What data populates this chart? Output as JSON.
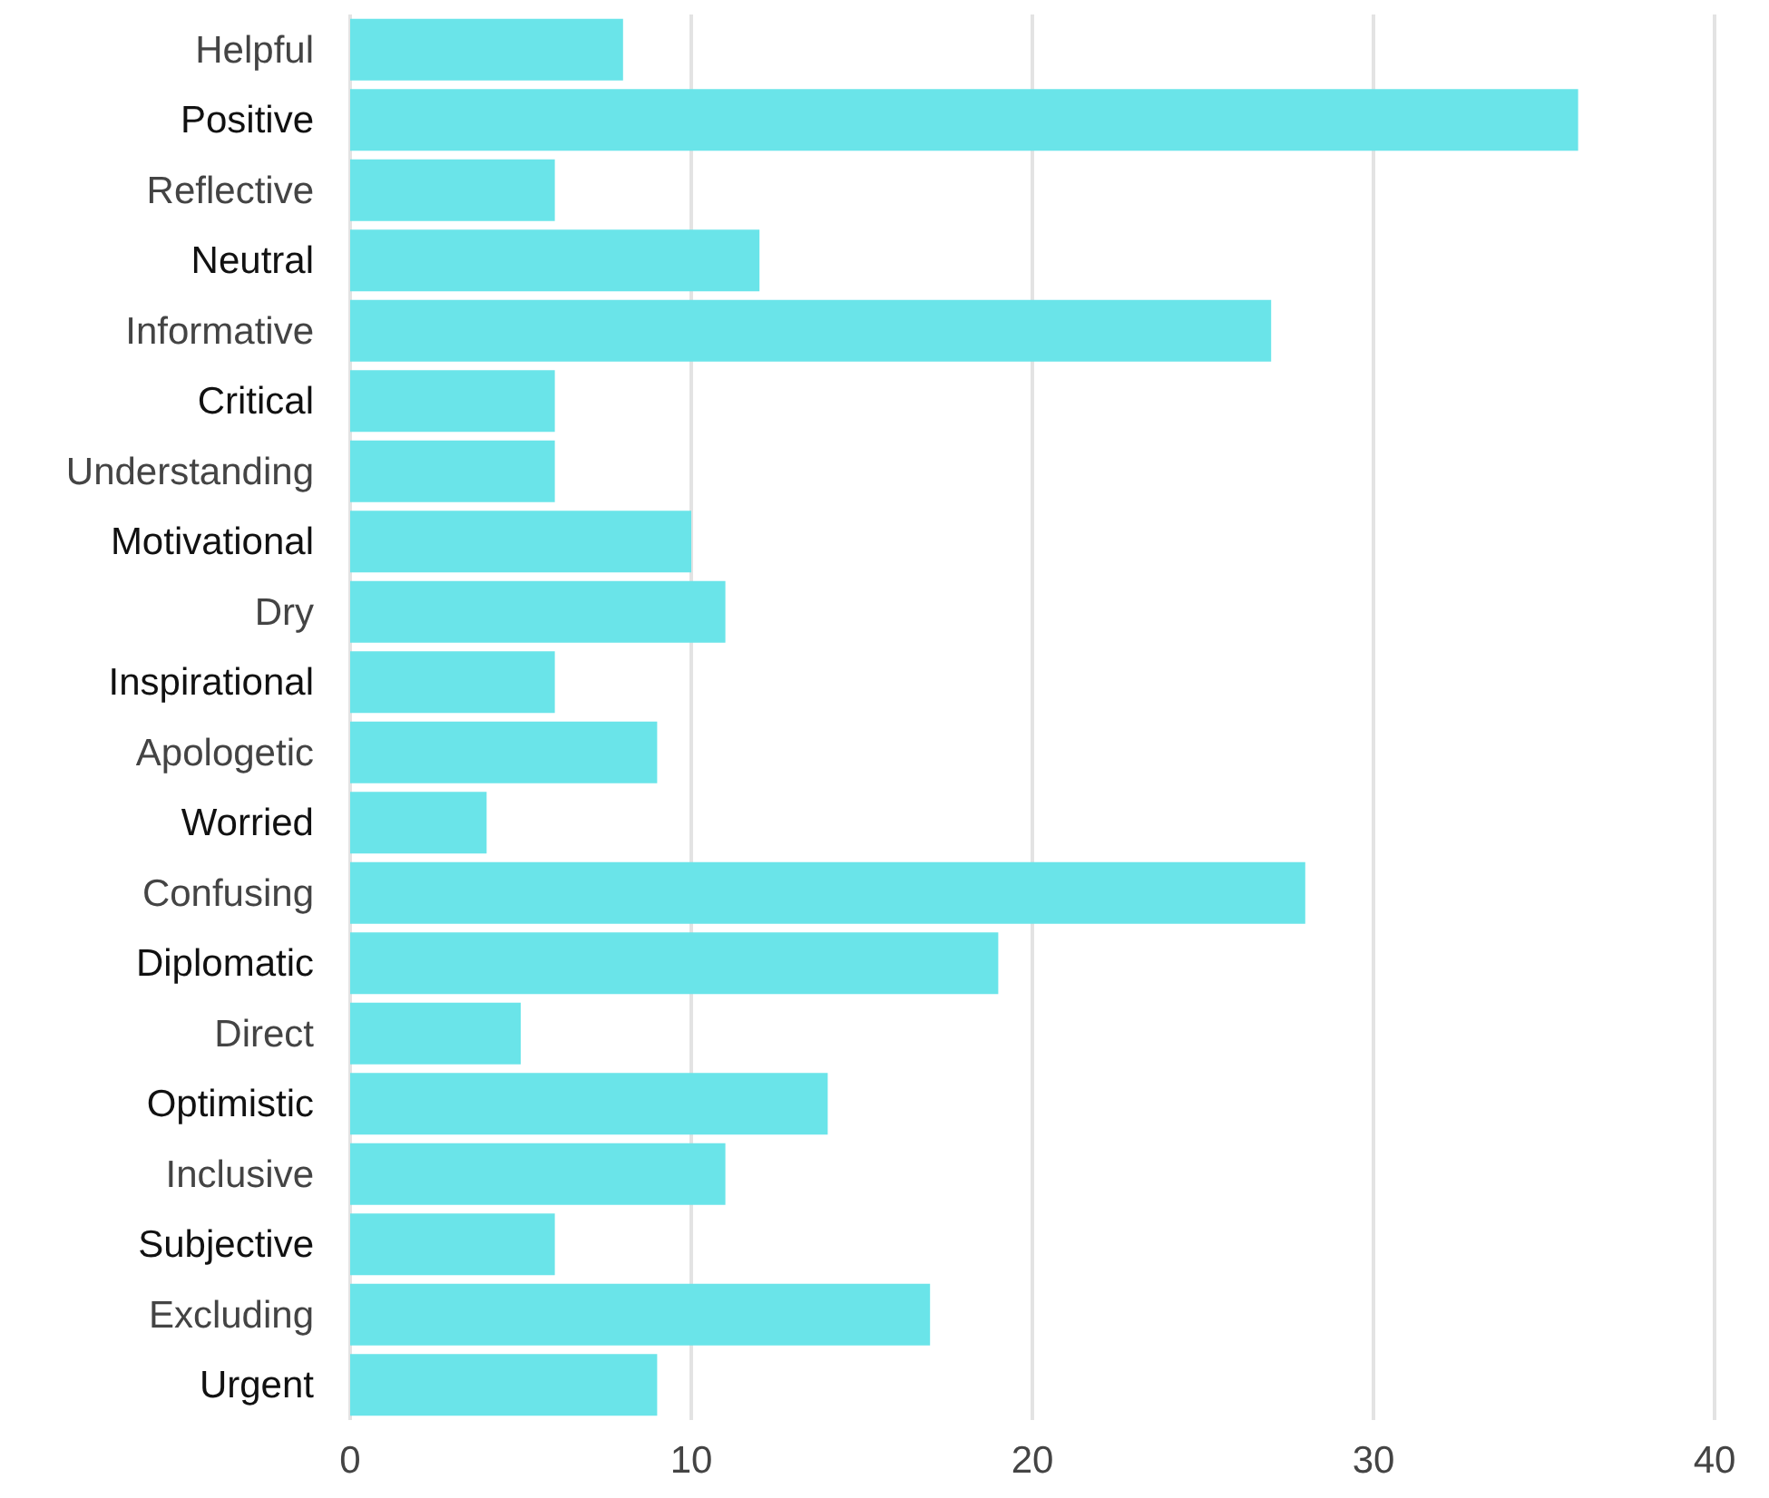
{
  "chart_data": {
    "type": "bar",
    "orientation": "horizontal",
    "categories": [
      "Helpful",
      "Positive",
      "Reflective",
      "Neutral",
      "Informative",
      "Critical",
      "Understanding",
      "Motivational",
      "Dry",
      "Inspirational",
      "Apologetic",
      "Worried",
      "Confusing",
      "Diplomatic",
      "Direct",
      "Optimistic",
      "Inclusive",
      "Subjective",
      "Excluding",
      "Urgent"
    ],
    "values": [
      8,
      36,
      6,
      12,
      27,
      6,
      6,
      10,
      11,
      6,
      9,
      4,
      28,
      19,
      5,
      14,
      11,
      6,
      17,
      9
    ],
    "color": "#6ae4e9",
    "xlim": [
      0,
      40
    ],
    "xticks": [
      0,
      10,
      20,
      30,
      40
    ],
    "grid": "x"
  }
}
